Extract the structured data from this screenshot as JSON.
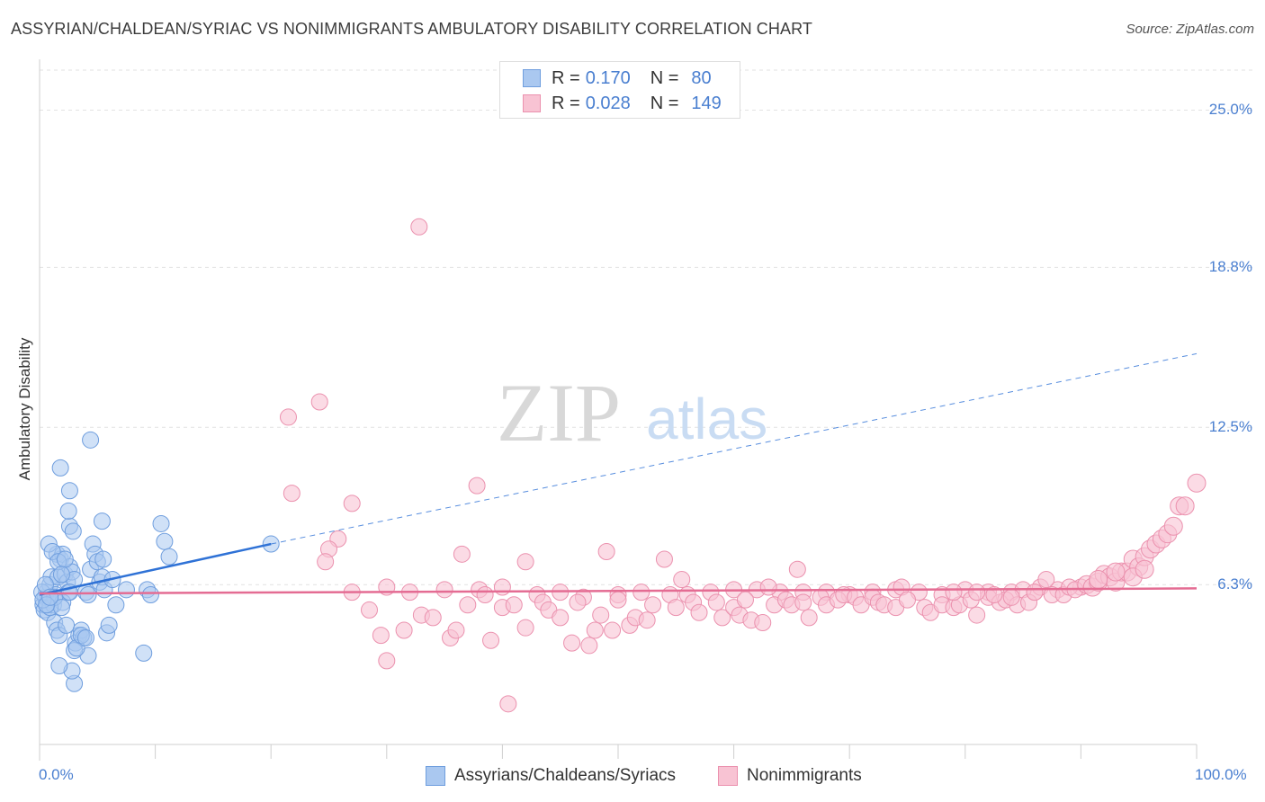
{
  "title": "ASSYRIAN/CHALDEAN/SYRIAC VS NONIMMIGRANTS AMBULATORY DISABILITY CORRELATION CHART",
  "source": "Source: ZipAtlas.com",
  "watermark": {
    "zip": "ZIP",
    "atlas": "atlas"
  },
  "legend_top": [
    {
      "r_label": "R =",
      "r_value": "0.170",
      "n_label": "N =",
      "n_value": "80",
      "color": "#4a7fd0"
    },
    {
      "r_label": "R =",
      "r_value": "0.028",
      "n_label": "N =",
      "n_value": "149",
      "color": "#e87a9c"
    }
  ],
  "colors": {
    "blue_fill": "#aac8f0",
    "blue_stroke": "#6f9ede",
    "blue_line": "#2f72d6",
    "pink_fill": "#f8c3d3",
    "pink_stroke": "#eb91ae",
    "pink_line": "#e46c93",
    "tick_label": "#4a7fd0",
    "grid": "#e2e2e2"
  },
  "chart_data": {
    "type": "scatter",
    "title": "ASSYRIAN/CHALDEAN/SYRIAC VS NONIMMIGRANTS AMBULATORY DISABILITY CORRELATION CHART",
    "xlabel": "",
    "ylabel": "Ambulatory Disability",
    "xlim": [
      0,
      100
    ],
    "ylim": [
      0,
      27.0
    ],
    "x_tick_labels": [
      "0.0%",
      "100.0%"
    ],
    "y_ticks": [
      6.3,
      12.5,
      18.8,
      25.0
    ],
    "y_tick_labels": [
      "6.3%",
      "12.5%",
      "18.8%",
      "25.0%"
    ],
    "grid": "horizontal dashed",
    "legend_position": "top-center",
    "series": [
      {
        "name": "Assyrians/Chaldeans/Syriacs",
        "r": 0.17,
        "n": 80,
        "trend": {
          "x0": 0,
          "y0": 5.9,
          "x1": 20,
          "y1": 7.9,
          "extended_to_x": 100,
          "extended_to_y": 15.4
        },
        "points": [
          [
            0.3,
            5.5
          ],
          [
            0.5,
            5.8
          ],
          [
            0.6,
            6.0
          ],
          [
            0.8,
            5.7
          ],
          [
            0.9,
            6.3
          ],
          [
            1.0,
            6.6
          ],
          [
            0.4,
            5.3
          ],
          [
            0.7,
            5.2
          ],
          [
            1.2,
            5.5
          ],
          [
            1.4,
            5.9
          ],
          [
            1.5,
            7.5
          ],
          [
            1.6,
            6.6
          ],
          [
            1.8,
            7.3
          ],
          [
            2.0,
            7.5
          ],
          [
            2.2,
            6.7
          ],
          [
            2.4,
            6.4
          ],
          [
            2.5,
            6.0
          ],
          [
            2.6,
            7.0
          ],
          [
            2.8,
            6.8
          ],
          [
            3.0,
            6.5
          ],
          [
            0.8,
            7.9
          ],
          [
            1.1,
            7.6
          ],
          [
            1.3,
            4.8
          ],
          [
            1.5,
            4.5
          ],
          [
            1.7,
            4.3
          ],
          [
            2.0,
            5.6
          ],
          [
            2.3,
            4.7
          ],
          [
            2.6,
            8.6
          ],
          [
            2.9,
            8.4
          ],
          [
            3.1,
            4.0
          ],
          [
            3.4,
            4.3
          ],
          [
            3.6,
            4.5
          ],
          [
            3.8,
            4.2
          ],
          [
            4.0,
            6.0
          ],
          [
            4.2,
            3.5
          ],
          [
            4.4,
            6.9
          ],
          [
            4.6,
            7.9
          ],
          [
            4.8,
            7.5
          ],
          [
            5.0,
            7.2
          ],
          [
            5.2,
            6.4
          ],
          [
            5.4,
            6.6
          ],
          [
            5.6,
            6.1
          ],
          [
            5.8,
            4.4
          ],
          [
            6.0,
            4.7
          ],
          [
            6.3,
            6.5
          ],
          [
            6.6,
            5.5
          ],
          [
            1.8,
            10.9
          ],
          [
            2.5,
            9.2
          ],
          [
            2.6,
            10.0
          ],
          [
            4.4,
            12.0
          ],
          [
            5.4,
            8.8
          ],
          [
            0.2,
            6.0
          ],
          [
            0.5,
            6.3
          ],
          [
            0.9,
            5.4
          ],
          [
            1.3,
            5.8
          ],
          [
            1.6,
            7.2
          ],
          [
            1.9,
            5.4
          ],
          [
            2.2,
            7.3
          ],
          [
            2.6,
            6.0
          ],
          [
            3.0,
            3.7
          ],
          [
            3.2,
            3.8
          ],
          [
            3.6,
            4.3
          ],
          [
            4.0,
            4.2
          ],
          [
            3.0,
            2.4
          ],
          [
            2.8,
            2.9
          ],
          [
            1.7,
            3.1
          ],
          [
            9.0,
            3.6
          ],
          [
            9.3,
            6.1
          ],
          [
            9.6,
            5.9
          ],
          [
            10.5,
            8.7
          ],
          [
            10.8,
            8.0
          ],
          [
            11.2,
            7.4
          ],
          [
            0.3,
            5.7
          ],
          [
            0.6,
            5.5
          ],
          [
            0.9,
            5.8
          ],
          [
            4.2,
            5.9
          ],
          [
            5.5,
            7.3
          ],
          [
            7.5,
            6.1
          ],
          [
            20.0,
            7.9
          ],
          [
            1.9,
            6.7
          ]
        ]
      },
      {
        "name": "Nonimmigrants",
        "r": 0.028,
        "n": 149,
        "trend": {
          "x0": 0,
          "y0": 5.95,
          "x1": 100,
          "y1": 6.15
        },
        "points": [
          [
            32.8,
            20.4
          ],
          [
            21.5,
            12.9
          ],
          [
            24.2,
            13.5
          ],
          [
            21.8,
            9.9
          ],
          [
            27.0,
            9.5
          ],
          [
            37.8,
            10.2
          ],
          [
            25.8,
            8.1
          ],
          [
            25.0,
            7.7
          ],
          [
            24.7,
            7.2
          ],
          [
            36.5,
            7.5
          ],
          [
            42.0,
            7.2
          ],
          [
            49.0,
            7.6
          ],
          [
            54.0,
            7.3
          ],
          [
            27.0,
            6.0
          ],
          [
            30.0,
            6.2
          ],
          [
            32.0,
            6.0
          ],
          [
            35.0,
            6.1
          ],
          [
            38.0,
            6.1
          ],
          [
            40.0,
            6.2
          ],
          [
            43.0,
            5.9
          ],
          [
            45.0,
            6.0
          ],
          [
            47.0,
            5.8
          ],
          [
            50.0,
            5.9
          ],
          [
            52.0,
            6.0
          ],
          [
            54.5,
            5.9
          ],
          [
            56.0,
            5.9
          ],
          [
            58.0,
            6.0
          ],
          [
            60.0,
            6.1
          ],
          [
            62.0,
            6.1
          ],
          [
            64.0,
            6.0
          ],
          [
            66.0,
            6.0
          ],
          [
            68.0,
            6.0
          ],
          [
            70.0,
            5.9
          ],
          [
            72.0,
            6.0
          ],
          [
            74.0,
            6.1
          ],
          [
            76.0,
            6.0
          ],
          [
            78.0,
            5.9
          ],
          [
            80.0,
            6.1
          ],
          [
            82.0,
            6.0
          ],
          [
            84.0,
            6.0
          ],
          [
            86.0,
            6.0
          ],
          [
            88.0,
            6.1
          ],
          [
            90.0,
            6.2
          ],
          [
            28.5,
            5.3
          ],
          [
            29.5,
            4.3
          ],
          [
            30.0,
            3.3
          ],
          [
            31.5,
            4.5
          ],
          [
            33.0,
            5.1
          ],
          [
            34.0,
            5.0
          ],
          [
            35.5,
            4.2
          ],
          [
            36.0,
            4.5
          ],
          [
            37.0,
            5.5
          ],
          [
            38.5,
            5.9
          ],
          [
            39.0,
            4.1
          ],
          [
            40.0,
            5.4
          ],
          [
            40.5,
            1.6
          ],
          [
            41.0,
            5.5
          ],
          [
            42.0,
            4.6
          ],
          [
            43.5,
            5.6
          ],
          [
            44.0,
            5.3
          ],
          [
            45.0,
            5.0
          ],
          [
            46.0,
            4.0
          ],
          [
            46.5,
            5.6
          ],
          [
            47.5,
            3.9
          ],
          [
            48.0,
            4.5
          ],
          [
            48.5,
            5.1
          ],
          [
            49.5,
            4.5
          ],
          [
            50.0,
            5.7
          ],
          [
            51.0,
            4.7
          ],
          [
            51.5,
            5.0
          ],
          [
            52.5,
            4.9
          ],
          [
            53.0,
            5.5
          ],
          [
            55.0,
            5.4
          ],
          [
            55.5,
            6.5
          ],
          [
            56.5,
            5.6
          ],
          [
            57.0,
            5.2
          ],
          [
            58.5,
            5.6
          ],
          [
            59.0,
            5.0
          ],
          [
            60.0,
            5.4
          ],
          [
            60.5,
            5.1
          ],
          [
            61.0,
            5.7
          ],
          [
            61.5,
            4.9
          ],
          [
            62.5,
            4.8
          ],
          [
            63.0,
            6.2
          ],
          [
            63.5,
            5.5
          ],
          [
            64.5,
            5.7
          ],
          [
            65.0,
            5.5
          ],
          [
            65.5,
            6.9
          ],
          [
            66.0,
            5.6
          ],
          [
            66.5,
            5.0
          ],
          [
            67.5,
            5.8
          ],
          [
            68.0,
            5.5
          ],
          [
            69.0,
            5.7
          ],
          [
            69.5,
            5.9
          ],
          [
            70.5,
            5.8
          ],
          [
            71.0,
            5.5
          ],
          [
            72.0,
            5.8
          ],
          [
            72.5,
            5.6
          ],
          [
            73.0,
            5.5
          ],
          [
            74.0,
            5.4
          ],
          [
            74.5,
            6.2
          ],
          [
            75.0,
            5.7
          ],
          [
            76.5,
            5.4
          ],
          [
            77.0,
            5.2
          ],
          [
            78.0,
            5.5
          ],
          [
            79.0,
            5.4
          ],
          [
            79.5,
            5.5
          ],
          [
            80.5,
            5.7
          ],
          [
            81.0,
            5.1
          ],
          [
            82.0,
            5.8
          ],
          [
            83.0,
            5.6
          ],
          [
            83.5,
            5.7
          ],
          [
            84.5,
            5.5
          ],
          [
            85.0,
            6.1
          ],
          [
            85.5,
            5.6
          ],
          [
            86.5,
            6.2
          ],
          [
            87.0,
            6.5
          ],
          [
            87.5,
            5.9
          ],
          [
            88.5,
            5.9
          ],
          [
            89.0,
            6.2
          ],
          [
            89.5,
            6.1
          ],
          [
            90.5,
            6.3
          ],
          [
            91.0,
            6.2
          ],
          [
            91.5,
            6.4
          ],
          [
            92.0,
            6.7
          ],
          [
            92.5,
            6.6
          ],
          [
            93.0,
            6.4
          ],
          [
            93.5,
            6.8
          ],
          [
            94.0,
            6.8
          ],
          [
            94.5,
            7.3
          ],
          [
            95.0,
            7.0
          ],
          [
            95.5,
            7.4
          ],
          [
            96.0,
            7.7
          ],
          [
            96.5,
            7.9
          ],
          [
            97.0,
            8.1
          ],
          [
            97.5,
            8.3
          ],
          [
            98.0,
            8.6
          ],
          [
            98.5,
            9.4
          ],
          [
            99.0,
            9.4
          ],
          [
            100.0,
            10.3
          ],
          [
            94.5,
            6.6
          ],
          [
            95.5,
            6.9
          ],
          [
            93.0,
            6.8
          ],
          [
            91.5,
            6.5
          ],
          [
            86.0,
            6.0
          ],
          [
            84.0,
            5.8
          ],
          [
            82.5,
            5.9
          ],
          [
            81.0,
            6.0
          ],
          [
            79.0,
            6.0
          ]
        ]
      }
    ]
  },
  "legend_bottom": [
    {
      "label": "Assyrians/Chaldeans/Syriacs"
    },
    {
      "label": "Nonimmigrants"
    }
  ]
}
